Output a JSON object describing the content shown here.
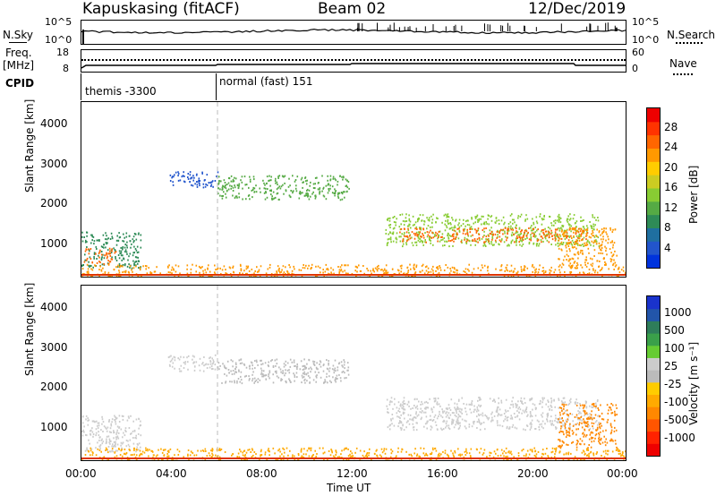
{
  "header": {
    "station": "Kapuskasing (fitACF)",
    "beam": "Beam 02",
    "date": "12/Dec/2019"
  },
  "noise_panel": {
    "left_label": "N.Sky",
    "right_label": "N.Search",
    "left_ticks": [
      "10^5",
      "10^0"
    ],
    "right_ticks": [
      "10^5",
      "10^0"
    ]
  },
  "freq_panel": {
    "left_label_1": "Freq.",
    "left_label_2": "[MHz]",
    "left_ticks": [
      "18",
      "8"
    ],
    "right_label": "Nave",
    "right_ticks": [
      "60",
      "0"
    ]
  },
  "cpid_panel": {
    "label": "CPID",
    "modes": [
      "themis -3300",
      "normal (fast) 151"
    ]
  },
  "x_axis": {
    "label": "Time UT",
    "ticks": [
      "00:00",
      "04:00",
      "08:00",
      "12:00",
      "16:00",
      "20:00",
      "00:00"
    ]
  },
  "y_axis": {
    "label": "Slant Range [km]",
    "ticks": [
      "1000",
      "2000",
      "3000",
      "4000"
    ]
  },
  "power_colorbar": {
    "label": "Power [dB]",
    "ticks": [
      "4",
      "8",
      "12",
      "16",
      "20",
      "24",
      "28"
    ],
    "colors": [
      "#0033dd",
      "#2255cc",
      "#1f6fa0",
      "#2e8b57",
      "#55aa44",
      "#88cc33",
      "#cccc22",
      "#ffcc00",
      "#ff9900",
      "#ff6600",
      "#ff3300",
      "#ee0000"
    ]
  },
  "velocity_colorbar": {
    "label": "Velocity [m s⁻¹]",
    "ticks": [
      "1000",
      "500",
      "100",
      "25",
      "-25",
      "-100",
      "-500",
      "-1000"
    ],
    "colors": [
      "#1a33cc",
      "#2255aa",
      "#2e7d5a",
      "#3aa04a",
      "#66cc33",
      "#cccccc",
      "#bbbbbb",
      "#ffcc00",
      "#ffaa00",
      "#ff8800",
      "#ff5500",
      "#ff2200",
      "#ee0000"
    ]
  },
  "chart_data": {
    "type": "heatmap",
    "x_range_hours": [
      0,
      24
    ],
    "y_range_km": [
      180,
      4500
    ],
    "mode_change_hour": 6.0,
    "power_regions": [
      {
        "t0": 0.0,
        "t1": 2.6,
        "r0": 400,
        "r1": 1300,
        "color": "#2e8b57"
      },
      {
        "t0": 0.1,
        "t1": 1.5,
        "r0": 500,
        "r1": 900,
        "color": "#ff6600"
      },
      {
        "t0": 3.8,
        "t1": 6.0,
        "r0": 2400,
        "r1": 2800,
        "color": "#2255cc"
      },
      {
        "t0": 6.0,
        "t1": 11.8,
        "r0": 2100,
        "r1": 2700,
        "color": "#55aa44"
      },
      {
        "t0": 13.4,
        "t1": 22.8,
        "r0": 950,
        "r1": 1750,
        "color": "#88cc33"
      },
      {
        "t0": 14.0,
        "t1": 22.3,
        "r0": 1050,
        "r1": 1400,
        "color": "#ff6600"
      },
      {
        "t0": 21.0,
        "t1": 23.6,
        "r0": 500,
        "r1": 1400,
        "color": "#ff9900"
      },
      {
        "t0": 0.0,
        "t1": 24.0,
        "r0": 180,
        "r1": 500,
        "color": "#ff9900"
      }
    ],
    "velocity_regions": [
      {
        "t0": 0.0,
        "t1": 2.6,
        "r0": 400,
        "r1": 1300,
        "color": "#cccccc"
      },
      {
        "t0": 3.8,
        "t1": 6.0,
        "r0": 2400,
        "r1": 2800,
        "color": "#cccccc"
      },
      {
        "t0": 6.0,
        "t1": 11.8,
        "r0": 2100,
        "r1": 2700,
        "color": "#bbbbbb"
      },
      {
        "t0": 13.4,
        "t1": 22.8,
        "r0": 950,
        "r1": 1750,
        "color": "#cccccc"
      },
      {
        "t0": 21.0,
        "t1": 23.6,
        "r0": 500,
        "r1": 1600,
        "color": "#ff8800"
      },
      {
        "t0": 0.0,
        "t1": 24.0,
        "r0": 180,
        "r1": 500,
        "color": "#ffaa00"
      }
    ]
  }
}
